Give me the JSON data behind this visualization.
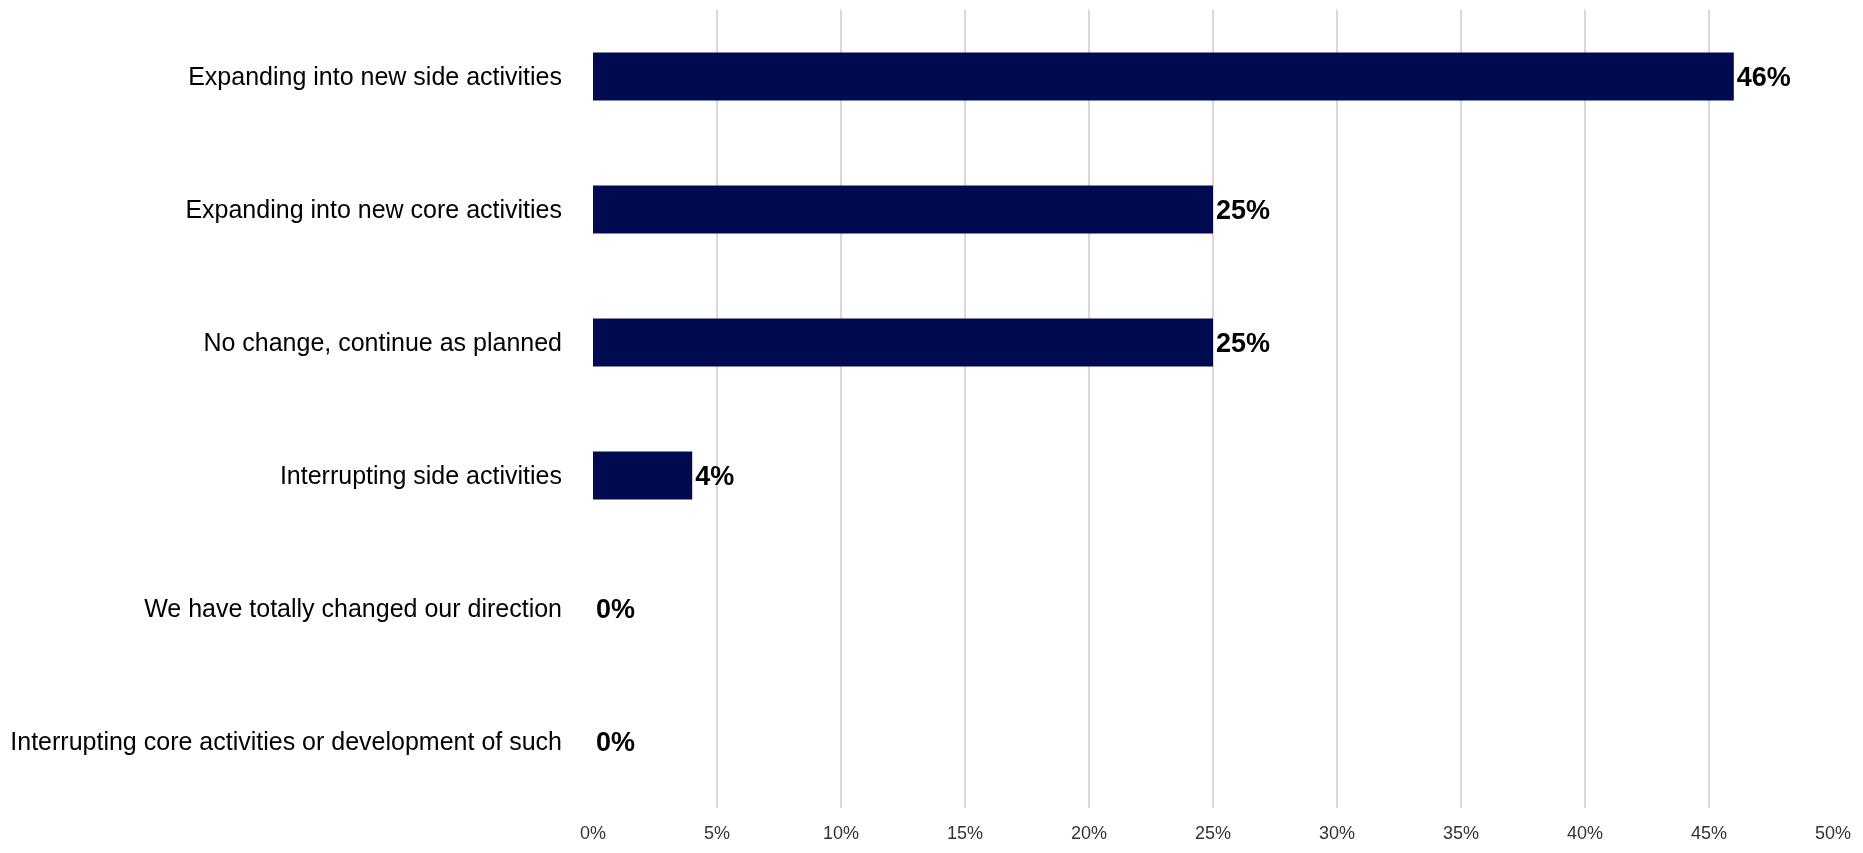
{
  "chart_data": {
    "type": "bar",
    "orientation": "horizontal",
    "categories": [
      "Expanding into new side activities",
      "Expanding into new core activities",
      "No change, continue as planned",
      "Interrupting side activities",
      "We have totally changed our direction",
      "Interrupting core activities or development of such"
    ],
    "values": [
      46,
      25,
      25,
      4,
      0,
      0
    ],
    "value_labels": [
      "46%",
      "25%",
      "25%",
      "4%",
      "0%",
      "0%"
    ],
    "color": "#000a50",
    "xlim": [
      0,
      50
    ],
    "xticks": [
      {
        "value": 0,
        "label": "0%"
      },
      {
        "value": 5,
        "label": "5%"
      },
      {
        "value": 10,
        "label": "10%"
      },
      {
        "value": 15,
        "label": "15%"
      },
      {
        "value": 20,
        "label": "20%"
      },
      {
        "value": 25,
        "label": "25%"
      },
      {
        "value": 30,
        "label": "30%"
      },
      {
        "value": 35,
        "label": "35%"
      },
      {
        "value": 40,
        "label": "40%"
      },
      {
        "value": 45,
        "label": "45%"
      },
      {
        "value": 50,
        "label": "50%"
      }
    ],
    "grid": "x"
  }
}
